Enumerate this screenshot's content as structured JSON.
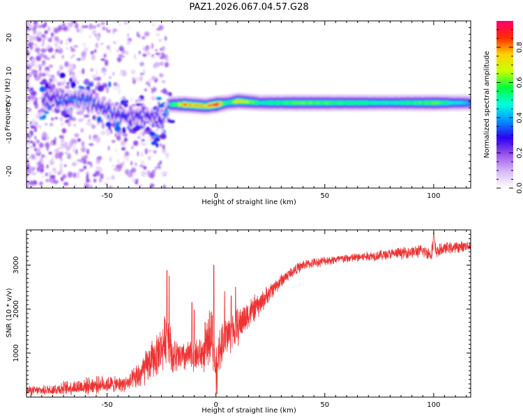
{
  "title": "PAZ1.2026.067.04.57.G28",
  "chart_data": [
    {
      "type": "heatmap",
      "xlabel": "Height of straight line (km)",
      "ylabel": "Frequency (Hz)",
      "xlim": [
        -87,
        117
      ],
      "ylim": [
        -25,
        25
      ],
      "x_ticks": [
        -50,
        0,
        50,
        100
      ],
      "y_ticks": [
        -20,
        -10,
        0,
        10,
        20
      ],
      "colorbar": {
        "label": "Normalized spectral amplitude",
        "range": [
          0,
          0.95
        ],
        "ticks": [
          0.0,
          0.2,
          0.4,
          0.6,
          0.8
        ],
        "colors": [
          "#ffffff",
          "#d8b8f8",
          "#9a55ee",
          "#2d00f0",
          "#0090ff",
          "#00ffe0",
          "#00ff40",
          "#c8ff00",
          "#ffd200",
          "#ff2a00",
          "#ff0070"
        ]
      },
      "ridge": {
        "x": [
          -80,
          -70,
          -60,
          -50,
          -40,
          -30,
          -25,
          -22,
          -15,
          -5,
          0,
          5,
          10,
          20,
          40,
          60,
          80,
          100,
          117
        ],
        "y": [
          1,
          2,
          1,
          -2,
          -4,
          -3,
          -5,
          0,
          0,
          -0.5,
          0,
          0.5,
          1,
          0.5,
          0.5,
          0.5,
          0.5,
          0.5,
          0.5
        ],
        "amplitude": [
          0.25,
          0.35,
          0.35,
          0.3,
          0.3,
          0.3,
          0.3,
          0.45,
          0.8,
          0.75,
          0.9,
          0.5,
          0.75,
          0.5,
          0.6,
          0.55,
          0.5,
          0.6,
          0.4
        ]
      }
    },
    {
      "type": "line",
      "xlabel": "Height of straight line (km)",
      "ylabel": "SNR (10 * v/v)",
      "xlim": [
        -87,
        117
      ],
      "ylim": [
        0,
        3800
      ],
      "x_ticks": [
        -50,
        0,
        50,
        100
      ],
      "y_ticks": [
        1000,
        2000,
        3000
      ],
      "color": "#ee3333",
      "series": [
        {
          "x": [
            -87,
            -80,
            -70,
            -60,
            -50,
            -45,
            -40,
            -35,
            -30,
            -25,
            -22,
            -20,
            -15,
            -10,
            -5,
            -2,
            0,
            2,
            5,
            10,
            15,
            20,
            25,
            30,
            35,
            40,
            50,
            60,
            70,
            80,
            90,
            95,
            99,
            100,
            101,
            105,
            110,
            117
          ],
          "y": [
            150,
            150,
            200,
            250,
            300,
            280,
            320,
            500,
            800,
            1100,
            1500,
            900,
            900,
            950,
            1000,
            1600,
            500,
            1200,
            1400,
            1600,
            1900,
            2100,
            2400,
            2650,
            2850,
            3000,
            3100,
            3150,
            3200,
            3250,
            3300,
            3320,
            3250,
            3600,
            3300,
            3380,
            3400,
            3450
          ],
          "noise": [
            120,
            120,
            180,
            220,
            220,
            200,
            220,
            400,
            500,
            600,
            700,
            500,
            400,
            400,
            500,
            800,
            600,
            600,
            550,
            500,
            400,
            300,
            220,
            180,
            150,
            130,
            120,
            120,
            130,
            140,
            160,
            170,
            180,
            300,
            180,
            150,
            150,
            130
          ],
          "spikes": [
            [
              -22.5,
              2880
            ],
            [
              -21.5,
              2750
            ],
            [
              -11,
              2150
            ],
            [
              -10,
              1980
            ],
            [
              -5,
              1700
            ],
            [
              -1,
              3000
            ],
            [
              0.5,
              80
            ],
            [
              4,
              2400
            ],
            [
              7,
              2300
            ],
            [
              9,
              2500
            ],
            [
              100,
              3720
            ]
          ]
        }
      ]
    }
  ]
}
